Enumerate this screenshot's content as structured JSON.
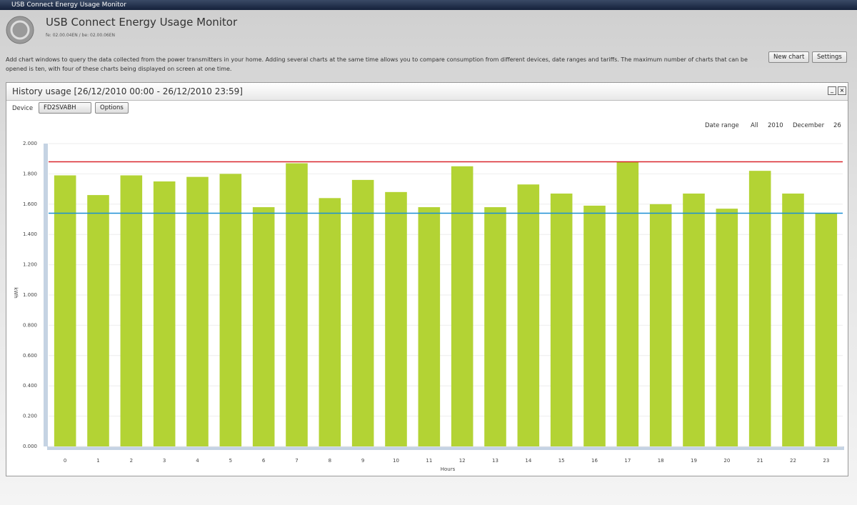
{
  "window": {
    "title": "USB Connect Energy Usage Monitor"
  },
  "header": {
    "title": "USB Connect Energy Usage Monitor",
    "version": "fe: 02.00.04EN / be: 02.00.06EN",
    "description": "Add chart windows to query the data collected from the power transmitters in your home. Adding several charts at the same time allows you to compare consumption from different devices, date ranges and tariffs. The maximum number of charts that can be opened is ten, with four of these charts being displayed on screen at one time.",
    "buttons": [
      "New chart",
      "Settings"
    ]
  },
  "panel": {
    "title": "History usage [26/12/2010 00:00 - 26/12/2010 23:59]",
    "device_label": "Device",
    "device": "FD2SVABH",
    "options": "Options",
    "date_range_label": "Date range",
    "date_range": [
      "All",
      "2010",
      "December",
      "26"
    ]
  },
  "chart_data": {
    "type": "bar",
    "x_label": "Hours",
    "y_label": "kWh",
    "categories": [
      "0",
      "1",
      "2",
      "3",
      "4",
      "5",
      "6",
      "7",
      "8",
      "9",
      "10",
      "11",
      "12",
      "13",
      "14",
      "15",
      "16",
      "17",
      "18",
      "19",
      "20",
      "21",
      "22",
      "23"
    ],
    "values": [
      1.79,
      1.66,
      1.79,
      1.75,
      1.78,
      1.8,
      1.58,
      1.87,
      1.64,
      1.76,
      1.68,
      1.58,
      1.85,
      1.58,
      1.73,
      1.67,
      1.59,
      1.88,
      1.6,
      1.67,
      1.57,
      1.82,
      1.67,
      1.54
    ],
    "color": "#b3d334",
    "ylim": [
      0,
      2
    ],
    "yticks": [
      {
        "value": 0,
        "label": "0.000"
      },
      {
        "value": 0.2,
        "label": "0.200"
      },
      {
        "value": 0.4,
        "label": "0.400"
      },
      {
        "value": 0.6,
        "label": "0.600"
      },
      {
        "value": 0.8,
        "label": "0.800"
      },
      {
        "value": 1,
        "label": "1.000"
      },
      {
        "value": 1.2,
        "label": "1.200"
      },
      {
        "value": 1.4,
        "label": "1.400"
      },
      {
        "value": 1.6,
        "label": "1.600"
      },
      {
        "value": 1.8,
        "label": "1.800"
      },
      {
        "value": 2,
        "label": "2.000"
      }
    ],
    "grid": true,
    "reference_lines": [
      {
        "value": 1.88,
        "color": "#d9262c"
      },
      {
        "value": 1.54,
        "color": "#1a8fd6"
      }
    ]
  }
}
